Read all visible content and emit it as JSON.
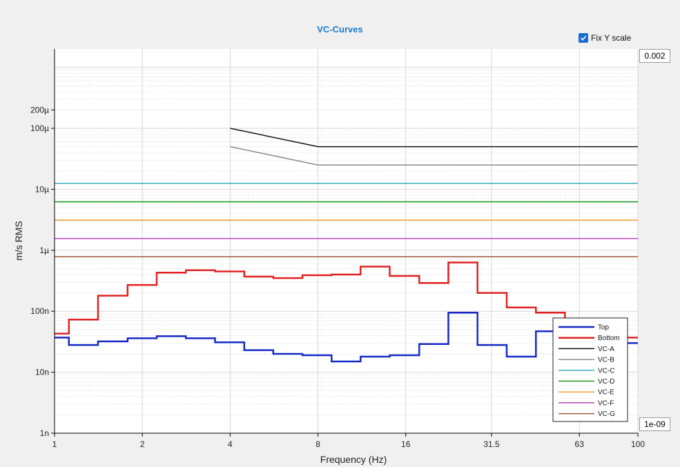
{
  "chart_data": {
    "type": "line",
    "title": "VC-Curves",
    "xlabel": "Frequency (Hz)",
    "ylabel": "m/s RMS",
    "x_scale": "log2",
    "y_scale": "log10",
    "xlim": [
      1,
      100
    ],
    "ylim": [
      1e-09,
      0.002
    ],
    "x_ticks": [
      {
        "value": 1,
        "label": "1"
      },
      {
        "value": 2,
        "label": "2"
      },
      {
        "value": 4,
        "label": "4"
      },
      {
        "value": 8,
        "label": "8"
      },
      {
        "value": 16,
        "label": "16"
      },
      {
        "value": 31.5,
        "label": "31.5"
      },
      {
        "value": 63,
        "label": "63"
      },
      {
        "value": 100,
        "label": "100"
      }
    ],
    "y_ticks": [
      {
        "value": 1e-09,
        "label": "1n"
      },
      {
        "value": 1e-08,
        "label": "10n"
      },
      {
        "value": 1e-07,
        "label": "100n"
      },
      {
        "value": 1e-06,
        "label": "1µ"
      },
      {
        "value": 1e-05,
        "label": "10µ"
      },
      {
        "value": 0.0001,
        "label": "100µ"
      },
      {
        "value": 0.0002,
        "label": "200µ"
      }
    ],
    "grid": true,
    "legend_position": "bottom-right",
    "series": [
      {
        "name": "Top",
        "color": "#1428c8",
        "width": 2.5,
        "step": true,
        "edges": [
          1,
          1.12,
          1.41,
          1.78,
          2.24,
          2.82,
          3.55,
          4.47,
          5.62,
          7.08,
          8.91,
          11.2,
          14.1,
          17.8,
          22.4,
          28.2,
          35.5,
          44.7,
          56.2,
          70.8,
          89.1,
          100
        ],
        "values": [
          3.7e-08,
          2.8e-08,
          3.2e-08,
          3.6e-08,
          3.9e-08,
          3.6e-08,
          3.1e-08,
          2.3e-08,
          2e-08,
          1.9e-08,
          1.5e-08,
          1.8e-08,
          1.9e-08,
          2.9e-08,
          9.5e-08,
          2.8e-08,
          1.8e-08,
          4.7e-08,
          4.5e-08,
          3.5e-08,
          3e-08
        ]
      },
      {
        "name": "Bottom",
        "color": "#e02020",
        "width": 2.5,
        "step": true,
        "edges": [
          1,
          1.12,
          1.41,
          1.78,
          2.24,
          2.82,
          3.55,
          4.47,
          5.62,
          7.08,
          8.91,
          11.2,
          14.1,
          17.8,
          22.4,
          28.2,
          35.5,
          44.7,
          56.2,
          70.8,
          89.1,
          100
        ],
        "values": [
          4.3e-08,
          7.3e-08,
          1.8e-07,
          2.7e-07,
          4.3e-07,
          4.7e-07,
          4.5e-07,
          3.7e-07,
          3.5e-07,
          3.9e-07,
          4e-07,
          5.4e-07,
          3.8e-07,
          2.9e-07,
          6.3e-07,
          2e-07,
          1.15e-07,
          9.5e-08,
          6e-08,
          4.5e-08,
          3.7e-08
        ]
      },
      {
        "name": "VC-A",
        "color": "#111111",
        "width": 1.5,
        "x": [
          4,
          8,
          100
        ],
        "y": [
          0.0001,
          5e-05,
          5e-05
        ]
      },
      {
        "name": "VC-B",
        "color": "#8a8a8a",
        "width": 1.5,
        "x": [
          4,
          8,
          100
        ],
        "y": [
          5e-05,
          2.5e-05,
          2.5e-05
        ]
      },
      {
        "name": "VC-C",
        "color": "#3ab0b8",
        "width": 1.5,
        "x": [
          1,
          100
        ],
        "y": [
          1.25e-05,
          1.25e-05
        ]
      },
      {
        "name": "VC-D",
        "color": "#1a9a1a",
        "width": 1.5,
        "x": [
          1,
          100
        ],
        "y": [
          6.25e-06,
          6.25e-06
        ]
      },
      {
        "name": "VC-E",
        "color": "#f0a030",
        "width": 1.5,
        "x": [
          1,
          100
        ],
        "y": [
          3.12e-06,
          3.12e-06
        ]
      },
      {
        "name": "VC-F",
        "color": "#c040c0",
        "width": 1.5,
        "x": [
          1,
          100
        ],
        "y": [
          1.56e-06,
          1.56e-06
        ]
      },
      {
        "name": "VC-G",
        "color": "#a0583a",
        "width": 1.5,
        "x": [
          1,
          100
        ],
        "y": [
          7.8e-07,
          7.8e-07
        ]
      }
    ]
  },
  "controls": {
    "fix_y_label": "Fix Y scale",
    "fix_y_checked": true,
    "ymax_value": "0.002",
    "ymin_value": "1e-09"
  }
}
